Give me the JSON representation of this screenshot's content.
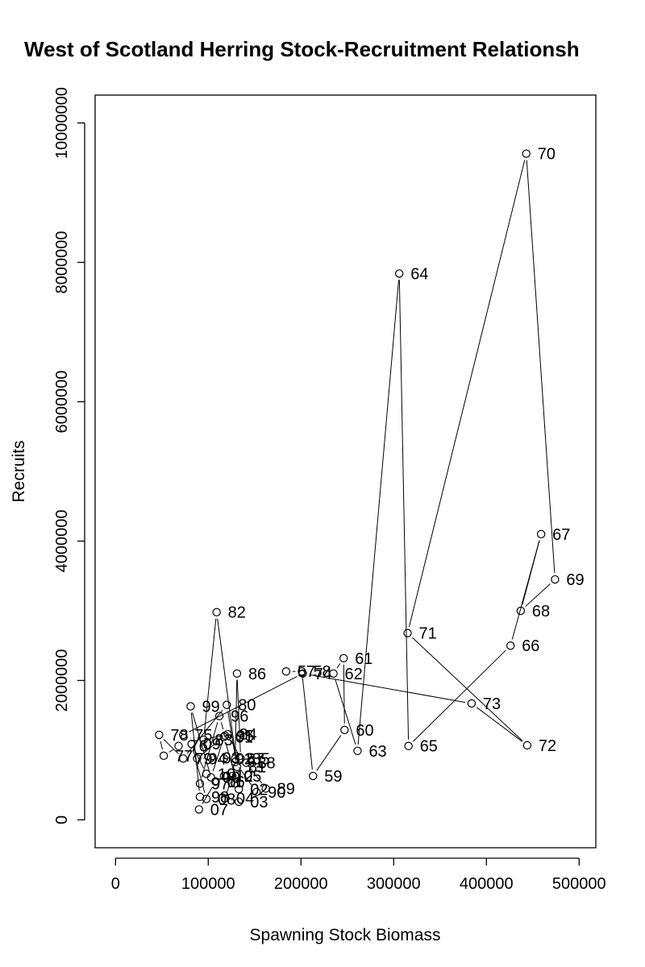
{
  "chart_data": {
    "type": "scatter",
    "title": "West of Scotland Herring Stock-Recruitment Relationsh",
    "xlabel": "Spawning Stock Biomass",
    "ylabel": "Recruits",
    "xlim": [
      -22000,
      518000
    ],
    "ylim": [
      -400000,
      10400000
    ],
    "xticks": [
      0,
      100000,
      200000,
      300000,
      400000,
      500000
    ],
    "xtick_labels": [
      "0",
      "100000",
      "200000",
      "300000",
      "400000",
      "500000"
    ],
    "yticks": [
      0,
      2000000,
      4000000,
      6000000,
      8000000,
      10000000
    ],
    "ytick_labels": [
      "0",
      "2000000",
      "4000000",
      "6000000",
      "8000000",
      "10000000"
    ],
    "grid": false,
    "connected": true,
    "points": [
      {
        "label": "57",
        "x": 184000,
        "y": 2130000
      },
      {
        "label": "58",
        "x": 201000,
        "y": 2130000
      },
      {
        "label": "59",
        "x": 213000,
        "y": 630000
      },
      {
        "label": "60",
        "x": 247000,
        "y": 1290000
      },
      {
        "label": "61",
        "x": 246000,
        "y": 2320000
      },
      {
        "label": "62",
        "x": 235000,
        "y": 2100000
      },
      {
        "label": "63",
        "x": 261000,
        "y": 990000
      },
      {
        "label": "64",
        "x": 306000,
        "y": 7840000
      },
      {
        "label": "65",
        "x": 316000,
        "y": 1060000
      },
      {
        "label": "66",
        "x": 426000,
        "y": 2500000
      },
      {
        "label": "67",
        "x": 459000,
        "y": 4100000
      },
      {
        "label": "68",
        "x": 437000,
        "y": 3000000
      },
      {
        "label": "69",
        "x": 474000,
        "y": 3450000
      },
      {
        "label": "70",
        "x": 443000,
        "y": 9560000
      },
      {
        "label": "71",
        "x": 315000,
        "y": 2680000
      },
      {
        "label": "72",
        "x": 444000,
        "y": 1070000
      },
      {
        "label": "73",
        "x": 384000,
        "y": 1670000
      },
      {
        "label": "74",
        "x": 202000,
        "y": 2100000
      },
      {
        "label": "75",
        "x": 73000,
        "y": 1220000
      },
      {
        "label": "76",
        "x": 68000,
        "y": 1060000
      },
      {
        "label": "77",
        "x": 52000,
        "y": 920000
      },
      {
        "label": "78",
        "x": 47000,
        "y": 1220000
      },
      {
        "label": "79",
        "x": 73000,
        "y": 880000
      },
      {
        "label": "80",
        "x": 120000,
        "y": 1650000
      },
      {
        "label": "81",
        "x": 131000,
        "y": 760000
      },
      {
        "label": "82",
        "x": 109000,
        "y": 2980000
      },
      {
        "label": "83",
        "x": 95000,
        "y": 1150000
      },
      {
        "label": "84",
        "x": 121000,
        "y": 1230000
      },
      {
        "label": "85",
        "x": 135000,
        "y": 880000
      },
      {
        "label": "86",
        "x": 131000,
        "y": 2100000
      },
      {
        "label": "87",
        "x": 129000,
        "y": 880000
      },
      {
        "label": "88",
        "x": 141000,
        "y": 820000
      },
      {
        "label": "89",
        "x": 162000,
        "y": 450000
      },
      {
        "label": "90",
        "x": 152000,
        "y": 400000
      },
      {
        "label": "91",
        "x": 129000,
        "y": 830000
      },
      {
        "label": "92",
        "x": 117000,
        "y": 880000
      },
      {
        "label": "93",
        "x": 103000,
        "y": 890000
      },
      {
        "label": "94",
        "x": 88000,
        "y": 880000
      },
      {
        "label": "95",
        "x": 118000,
        "y": 1210000
      },
      {
        "label": "96",
        "x": 112000,
        "y": 1490000
      },
      {
        "label": "97",
        "x": 91000,
        "y": 520000
      },
      {
        "label": "98",
        "x": 91000,
        "y": 330000
      },
      {
        "label": "99",
        "x": 81000,
        "y": 1630000
      },
      {
        "label": "00",
        "x": 103000,
        "y": 610000
      },
      {
        "label": "01",
        "x": 117000,
        "y": 1190000
      },
      {
        "label": "02",
        "x": 133000,
        "y": 440000
      },
      {
        "label": "03",
        "x": 133000,
        "y": 260000
      },
      {
        "label": "04",
        "x": 118000,
        "y": 310000
      },
      {
        "label": "05",
        "x": 126000,
        "y": 630000
      },
      {
        "label": "06",
        "x": 108000,
        "y": 550000
      },
      {
        "label": "07",
        "x": 90000,
        "y": 150000
      },
      {
        "label": "08",
        "x": 98000,
        "y": 300000
      },
      {
        "label": "09",
        "x": 82000,
        "y": 1090000
      },
      {
        "label": "10",
        "x": 98000,
        "y": 660000
      },
      {
        "label": "11",
        "x": 108000,
        "y": 550000
      },
      {
        "label": "12",
        "x": 117000,
        "y": 630000
      }
    ]
  }
}
